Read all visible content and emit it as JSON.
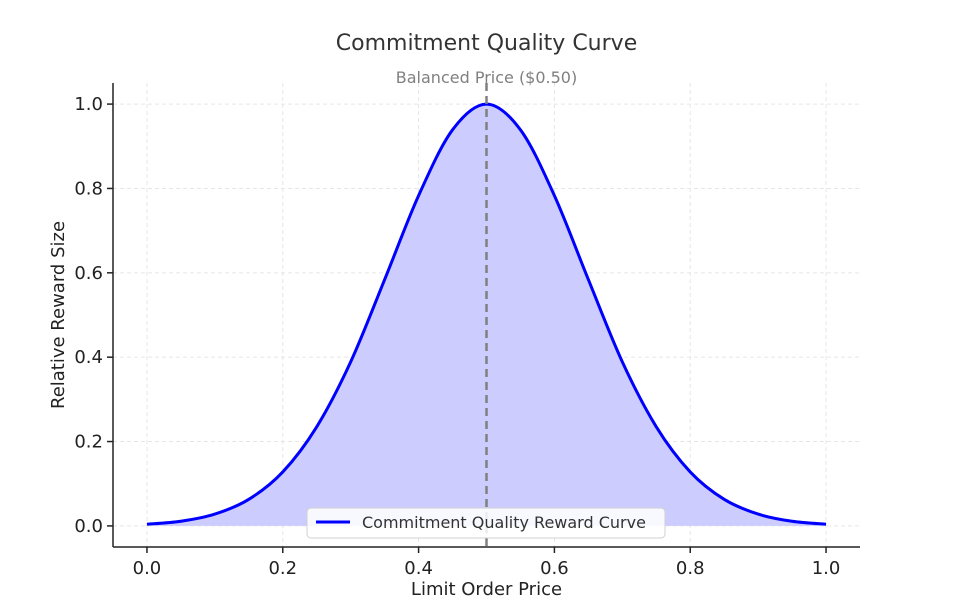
{
  "chart_data": {
    "type": "area",
    "title": "Commitment Quality Curve",
    "xlabel": "Limit Order Price",
    "ylabel": "Relative Reward Size",
    "xlim": [
      -0.05,
      1.05
    ],
    "ylim": [
      -0.05,
      1.05
    ],
    "xticks": [
      0.0,
      0.2,
      0.4,
      0.6,
      0.8,
      1.0
    ],
    "xtick_labels": [
      "0.0",
      "0.2",
      "0.4",
      "0.6",
      "0.8",
      "1.0"
    ],
    "yticks": [
      0.0,
      0.2,
      0.4,
      0.6,
      0.8,
      1.0
    ],
    "ytick_labels": [
      "0.0",
      "0.2",
      "0.4",
      "0.6",
      "0.8",
      "1.0"
    ],
    "grid": true,
    "legend_position": "bottom-center",
    "series": [
      {
        "name": "Commitment Quality Reward Curve",
        "color": "#0000ff",
        "fill_color": "#ccccff",
        "x": [
          0.0,
          0.05,
          0.1,
          0.15,
          0.2,
          0.25,
          0.3,
          0.35,
          0.4,
          0.45,
          0.5,
          0.55,
          0.6,
          0.65,
          0.7,
          0.75,
          0.8,
          0.85,
          0.9,
          0.95,
          1.0
        ],
        "y": [
          0.004,
          0.011,
          0.028,
          0.063,
          0.128,
          0.235,
          0.389,
          0.584,
          0.783,
          0.939,
          1.0,
          0.939,
          0.783,
          0.584,
          0.389,
          0.235,
          0.128,
          0.063,
          0.028,
          0.011,
          0.004
        ]
      }
    ],
    "annotations": [
      {
        "type": "vline",
        "x": 0.5,
        "label": "Balanced Price ($0.50)",
        "color": "#808080",
        "style": "dashed"
      }
    ]
  }
}
